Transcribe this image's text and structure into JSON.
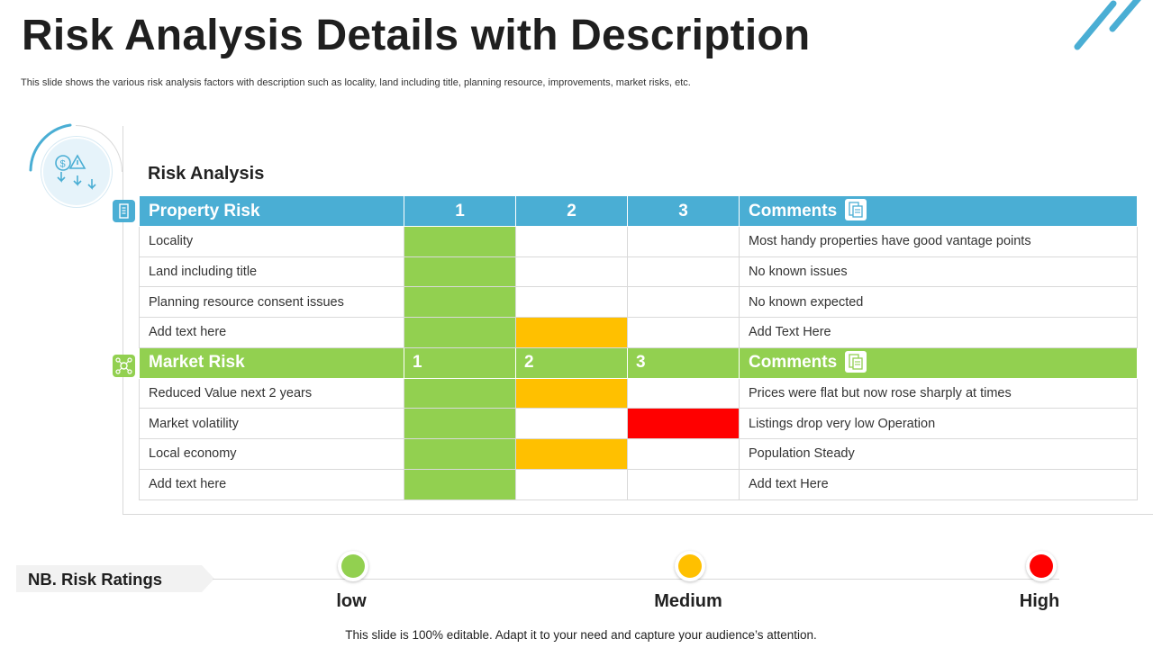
{
  "title": "Risk Analysis Details with Description",
  "subtitle": "This slide shows the various risk analysis factors with description such as locality, land including title, planning resource, improvements, market risks, etc.",
  "section_title": "Risk Analysis",
  "colors": {
    "blue": "#4aaed4",
    "green": "#92d050",
    "yellow": "#ffc000",
    "red": "#ff0000"
  },
  "property": {
    "header": "Property Risk",
    "cols": [
      "1",
      "2",
      "3"
    ],
    "comments_label": "Comments",
    "rows": [
      {
        "label": "Locality",
        "rating": 1,
        "comment": "Most handy properties have good vantage points"
      },
      {
        "label": "Land including title",
        "rating": 1,
        "comment": "No known issues"
      },
      {
        "label": "Planning resource consent issues",
        "rating": 1,
        "comment": "No known expected"
      },
      {
        "label": "Add text here",
        "rating": 2,
        "comment": "Add Text Here"
      }
    ]
  },
  "market": {
    "header": "Market Risk",
    "cols": [
      "1",
      "2",
      "3"
    ],
    "comments_label": "Comments",
    "rows": [
      {
        "label": "Reduced Value next 2 years",
        "rating": 2,
        "comment": "Prices were flat but now rose sharply at times"
      },
      {
        "label": "Market volatility",
        "rating": 3,
        "comment": "Listings drop very low Operation"
      },
      {
        "label": "Local economy",
        "rating": 2,
        "comment": "Population Steady"
      },
      {
        "label": "Add text here",
        "rating": 1,
        "comment": "Add text Here"
      }
    ]
  },
  "legend": {
    "label": "NB. Risk Ratings",
    "items": [
      {
        "label": "low",
        "color": "#92d050"
      },
      {
        "label": "Medium",
        "color": "#ffc000"
      },
      {
        "label": "High",
        "color": "#ff0000"
      }
    ]
  },
  "footer": "This slide is 100% editable. Adapt it to your need and capture your audience’s attention.",
  "icons": {
    "badge": "risk-finance-icon",
    "property": "building-icon",
    "market": "market-network-icon",
    "comments": "comments-doc-icon"
  }
}
